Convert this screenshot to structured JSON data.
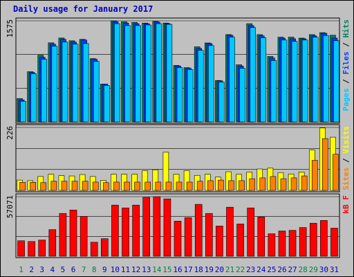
{
  "chart_data": [
    {
      "type": "bar",
      "title": "Daily usage for January 2017",
      "separator": "/",
      "ylim": [
        0,
        1575
      ],
      "yticks": [
        1575
      ],
      "gridlines": [
        525,
        1050,
        1575
      ],
      "series": [
        {
          "name": "Hits",
          "color": "#00805c",
          "values": [
            364,
            782,
            1039,
            1232,
            1307,
            1264,
            1286,
            986,
            589,
            1575,
            1560,
            1550,
            1540,
            1565,
            1540,
            880,
            845,
            1170,
            1230,
            645,
            1360,
            890,
            1530,
            1360,
            1020,
            1320,
            1320,
            1305,
            1360,
            1390,
            1350
          ]
        },
        {
          "name": "Files",
          "color": "#0040ff",
          "values": [
            343,
            771,
            1007,
            1211,
            1286,
            1243,
            1275,
            975,
            589,
            1560,
            1540,
            1530,
            1530,
            1555,
            1530,
            870,
            835,
            1145,
            1220,
            640,
            1350,
            870,
            1500,
            1340,
            995,
            1305,
            1295,
            1295,
            1340,
            1380,
            1305
          ]
        },
        {
          "name": "Pages",
          "color": "#00c8ff",
          "values": [
            321,
            750,
            975,
            1179,
            1243,
            1211,
            1221,
            943,
            568,
            1530,
            1500,
            1500,
            1510,
            1530,
            1520,
            845,
            815,
            1115,
            1190,
            620,
            1320,
            835,
            1470,
            1310,
            955,
            1275,
            1255,
            1275,
            1320,
            1345,
            1265
          ]
        }
      ]
    },
    {
      "type": "bar",
      "ylim": [
        0,
        226
      ],
      "yticks": [
        226
      ],
      "gridlines": [
        75.33,
        150.67,
        226
      ],
      "series": [
        {
          "name": "Visits",
          "color": "#ffff00",
          "values": [
            37,
            35,
            50,
            58,
            53,
            52,
            57,
            50,
            36,
            58,
            58,
            58,
            71,
            74,
            137,
            58,
            71,
            54,
            58,
            48,
            67,
            58,
            66,
            77,
            80,
            64,
            59,
            66,
            145,
            224,
            191
          ]
        },
        {
          "name": "Sites",
          "color": "#ff8000",
          "values": [
            29,
            29,
            28,
            33,
            33,
            33,
            33,
            30,
            28,
            30,
            30,
            30,
            30,
            30,
            30,
            30,
            30,
            33,
            35,
            37,
            35,
            35,
            42,
            45,
            50,
            42,
            45,
            52,
            108,
            186,
            130
          ]
        }
      ]
    },
    {
      "type": "bar",
      "ylim": [
        0,
        57071
      ],
      "yticks": [
        57071
      ],
      "gridlines": [
        19023.67,
        38047.33,
        57071
      ],
      "categories": [
        "1",
        "2",
        "3",
        "4",
        "5",
        "6",
        "7",
        "8",
        "9",
        "10",
        "11",
        "12",
        "13",
        "14",
        "15",
        "16",
        "17",
        "18",
        "19",
        "20",
        "21",
        "22",
        "23",
        "24",
        "25",
        "26",
        "27",
        "28",
        "29",
        "30",
        "31"
      ],
      "category_colors": [
        "#008040",
        "#0000c0",
        "#0000c0",
        "#0000c0",
        "#0000c0",
        "#0000c0",
        "#008040",
        "#008040",
        "#0000c0",
        "#0000c0",
        "#0000c0",
        "#0000c0",
        "#0000c0",
        "#008040",
        "#008040",
        "#0000c0",
        "#0000c0",
        "#0000c0",
        "#0000c0",
        "#0000c0",
        "#008040",
        "#008040",
        "#0000c0",
        "#0000c0",
        "#0000c0",
        "#0000c0",
        "#0000c0",
        "#008040",
        "#008040",
        "#0000c0",
        "#0000c0"
      ],
      "series": [
        {
          "name": "kB F",
          "color": "#ff0000",
          "values": [
            14800,
            14100,
            15500,
            25500,
            41000,
            44300,
            38200,
            13400,
            16800,
            49000,
            46300,
            49000,
            56400,
            57071,
            55000,
            33600,
            37000,
            49700,
            41000,
            28900,
            47000,
            30900,
            46300,
            37600,
            21500,
            24200,
            24800,
            27500,
            31600,
            34300,
            26900
          ]
        }
      ]
    }
  ]
}
